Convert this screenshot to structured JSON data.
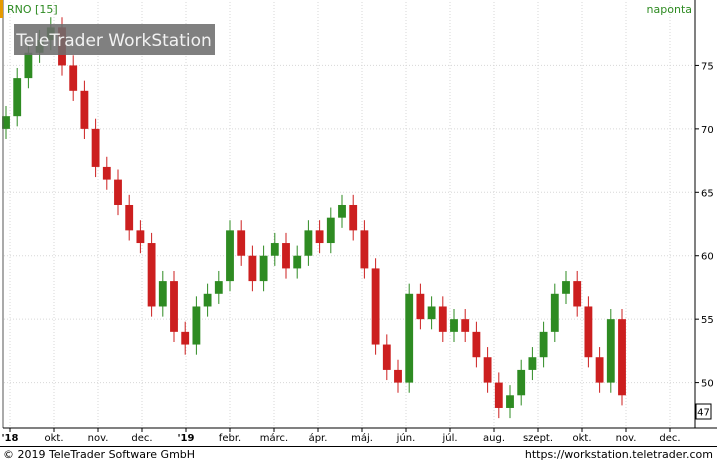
{
  "header": {
    "symbol_label": "RNO [15]",
    "period_label": "naponta",
    "watermark": "TeleTrader WorkStation"
  },
  "footer": {
    "copyright": "© 2019 TeleTrader Software GmbH",
    "url": "https://workstation.teletrader.com"
  },
  "colors": {
    "up": "#2e8b22",
    "down": "#cc1f1f",
    "grid": "#d7d7d7",
    "accent": "#e69a00",
    "watermark_bg": "#6e6e6e"
  },
  "chart_data": {
    "type": "candlestick",
    "title": "RNO [15]",
    "frequency": "naponta",
    "ylim": [
      46.5,
      80
    ],
    "yticks": [
      50,
      55,
      60,
      65,
      70,
      75
    ],
    "x_tick_labels": [
      "'18",
      "okt.",
      "nov.",
      "dec.",
      "'19",
      "febr.",
      "márc.",
      "ápr.",
      "máj.",
      "jún.",
      "júl.",
      "aug.",
      "szept.",
      "okt.",
      "nov.",
      "dec."
    ],
    "last_price": "47",
    "grid": true,
    "series": [
      {
        "x": [
          "2018-09",
          "2018-09",
          "2018-09",
          "2018-09",
          "2018-10",
          "2018-10",
          "2018-10",
          "2018-10",
          "2018-11",
          "2018-11",
          "2018-11",
          "2018-11",
          "2018-12",
          "2018-12",
          "2018-12",
          "2018-12",
          "2019-01",
          "2019-01",
          "2019-01",
          "2019-01",
          "2019-02",
          "2019-02",
          "2019-02",
          "2019-02",
          "2019-03",
          "2019-03",
          "2019-03",
          "2019-03",
          "2019-04",
          "2019-04",
          "2019-04",
          "2019-04",
          "2019-05",
          "2019-05",
          "2019-05",
          "2019-05",
          "2019-06",
          "2019-06",
          "2019-06",
          "2019-06",
          "2019-07",
          "2019-07",
          "2019-07",
          "2019-07",
          "2019-08",
          "2019-08",
          "2019-08",
          "2019-08",
          "2019-09",
          "2019-09",
          "2019-09",
          "2019-09",
          "2019-10",
          "2019-10",
          "2019-10",
          "2019-10"
        ],
        "close": [
          71,
          74,
          76,
          77,
          78,
          75,
          73,
          70,
          67,
          66,
          64,
          62,
          61,
          56,
          58,
          54,
          53,
          56,
          57,
          58,
          62,
          60,
          58,
          60,
          61,
          59,
          60,
          62,
          61,
          63,
          64,
          62,
          59,
          53,
          51,
          50,
          57,
          55,
          56,
          54,
          55,
          54,
          52,
          50,
          48,
          49,
          51,
          52,
          54,
          57,
          58,
          56,
          52,
          50,
          55,
          49
        ]
      }
    ]
  }
}
